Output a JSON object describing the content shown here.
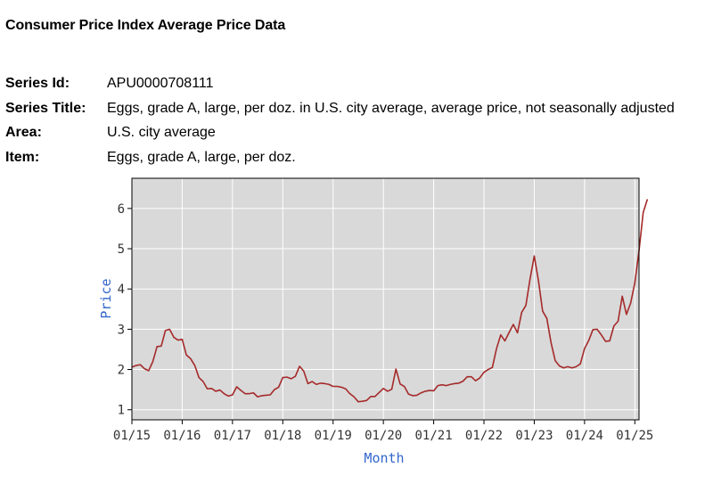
{
  "page": {
    "title": "Consumer Price Index Average Price Data"
  },
  "series_info": [
    {
      "label": "Series Id:",
      "value": "APU0000708111"
    },
    {
      "label": "Series Title:",
      "value": "Eggs, grade A, large, per doz. in U.S. city average, average price, not seasonally adjusted"
    },
    {
      "label": "Area:",
      "value": "U.S. city average"
    },
    {
      "label": "Item:",
      "value": "Eggs, grade A, large, per doz."
    }
  ],
  "colors": {
    "plot_background": "#d9d9d9",
    "grid": "#ffffff",
    "line": "#a52a2a",
    "axis_label": "#3366cc",
    "tick_label": "#333333"
  },
  "chart_data": {
    "type": "line",
    "title": "",
    "xlabel": "Month",
    "ylabel": "Price",
    "xlim": [
      0,
      121
    ],
    "ylim": [
      0.75,
      6.75
    ],
    "x_ticks": [
      {
        "label": "01/15",
        "index": 0
      },
      {
        "label": "01/16",
        "index": 12
      },
      {
        "label": "01/17",
        "index": 24
      },
      {
        "label": "01/18",
        "index": 36
      },
      {
        "label": "01/19",
        "index": 48
      },
      {
        "label": "01/20",
        "index": 60
      },
      {
        "label": "01/21",
        "index": 72
      },
      {
        "label": "01/22",
        "index": 84
      },
      {
        "label": "01/23",
        "index": 96
      },
      {
        "label": "01/24",
        "index": 108
      },
      {
        "label": "01/25",
        "index": 120
      }
    ],
    "y_ticks": [
      1,
      2,
      3,
      4,
      5,
      6
    ],
    "series": [
      {
        "name": "Eggs, grade A, large, per doz.",
        "start": "01/15",
        "values": [
          2.06,
          2.1,
          2.12,
          2.02,
          1.97,
          2.2,
          2.57,
          2.58,
          2.97,
          3.0,
          2.8,
          2.73,
          2.75,
          2.36,
          2.27,
          2.1,
          1.8,
          1.7,
          1.52,
          1.53,
          1.46,
          1.49,
          1.4,
          1.34,
          1.37,
          1.57,
          1.48,
          1.4,
          1.4,
          1.42,
          1.32,
          1.35,
          1.36,
          1.37,
          1.5,
          1.56,
          1.8,
          1.81,
          1.77,
          1.83,
          2.08,
          1.96,
          1.65,
          1.7,
          1.63,
          1.66,
          1.65,
          1.63,
          1.58,
          1.58,
          1.56,
          1.52,
          1.4,
          1.32,
          1.2,
          1.21,
          1.23,
          1.33,
          1.33,
          1.43,
          1.53,
          1.46,
          1.51,
          2.01,
          1.64,
          1.58,
          1.39,
          1.35,
          1.36,
          1.42,
          1.46,
          1.48,
          1.47,
          1.6,
          1.62,
          1.6,
          1.63,
          1.65,
          1.66,
          1.71,
          1.82,
          1.82,
          1.72,
          1.79,
          1.93,
          2.0,
          2.05,
          2.52,
          2.86,
          2.71,
          2.92,
          3.12,
          2.91,
          3.42,
          3.59,
          4.25,
          4.82,
          4.21,
          3.45,
          3.27,
          2.67,
          2.22,
          2.09,
          2.04,
          2.07,
          2.04,
          2.07,
          2.14,
          2.52,
          2.72,
          2.99,
          3.0,
          2.86,
          2.7,
          2.71,
          3.08,
          3.2,
          3.82,
          3.37,
          3.65,
          4.15,
          4.95,
          5.9,
          6.23
        ]
      }
    ]
  }
}
